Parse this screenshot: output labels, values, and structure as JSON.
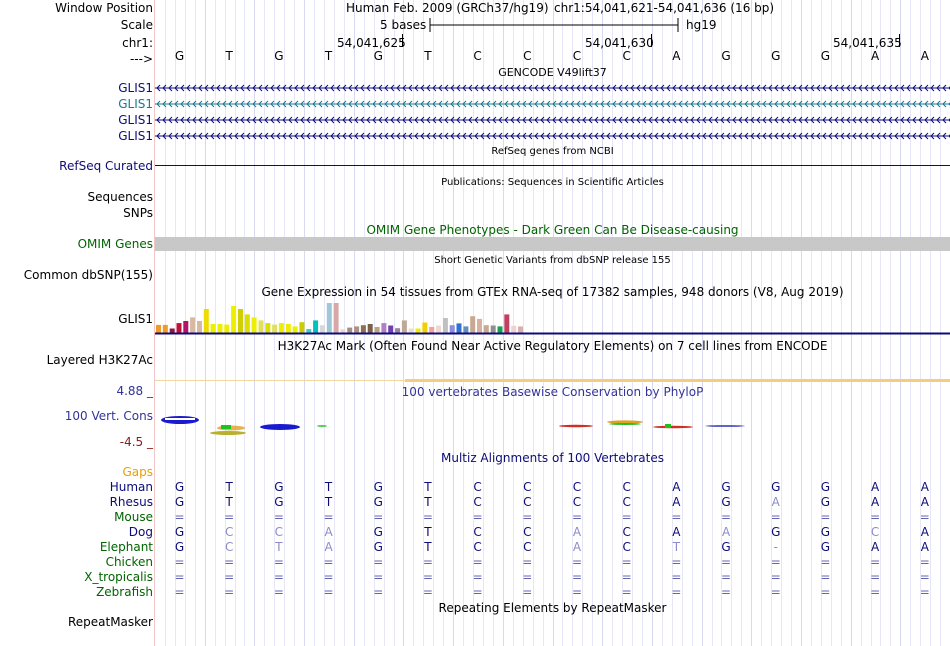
{
  "header": {
    "window_position_label": "Window Position",
    "assembly_text": "Human Feb. 2009 (GRCh37/hg19)",
    "position_text": "chr1:54,041,621-54,041,636 (16 bp)",
    "scale_label": "Scale",
    "scale_text": "5 bases",
    "assembly_short": "hg19",
    "chrom_label": "chr1:",
    "ticks": [
      "54,041,625",
      "54,041,630",
      "54,041,635"
    ],
    "strand_label": "--->"
  },
  "sequence": [
    "G",
    "T",
    "G",
    "T",
    "G",
    "T",
    "C",
    "C",
    "C",
    "C",
    "A",
    "G",
    "G",
    "G",
    "A",
    "A"
  ],
  "gencode": {
    "title": "GENCODE V49lift37",
    "tracks": [
      {
        "label": "GLIS1",
        "color": "#0c0c78"
      },
      {
        "label": "GLIS1",
        "color": "#187890"
      },
      {
        "label": "GLIS1",
        "color": "#0c0c78"
      },
      {
        "label": "GLIS1",
        "color": "#0c0c78"
      }
    ]
  },
  "refseq": {
    "label": "RefSeq Curated",
    "title": "RefSeq genes from NCBI"
  },
  "publications": {
    "title": "Publications: Sequences in Scientific Articles",
    "label_sequences": "Sequences",
    "label_snps": "SNPs"
  },
  "omim": {
    "title": "OMIM Gene Phenotypes - Dark Green Can Be Disease-causing",
    "label": "OMIM Genes",
    "bar_color": "#c8c8c8"
  },
  "dbsnp": {
    "title": "Short Genetic Variants from dbSNP release 155",
    "label": "Common dbSNP(155)"
  },
  "gtex": {
    "title": "Gene Expression in 54 tissues from GTEx RNA-seq of 17382 samples, 948 donors (V8, Aug 2019)",
    "label": "GLIS1",
    "levels": [
      0.27,
      0.27,
      0.15,
      0.33,
      0.4,
      0.52,
      0.4,
      0.8,
      0.3,
      0.3,
      0.28,
      0.9,
      0.8,
      0.62,
      0.52,
      0.42,
      0.33,
      0.28,
      0.33,
      0.3,
      0.22,
      0.36,
      0.13,
      0.42,
      0.26,
      1.0,
      1.0,
      0.12,
      0.18,
      0.22,
      0.26,
      0.3,
      0.2,
      0.33,
      0.25,
      0.16,
      0.42,
      0.15,
      0.15,
      0.35,
      0.2,
      0.25,
      0.5,
      0.26,
      0.32,
      0.22,
      0.56,
      0.47,
      0.26,
      0.25,
      0.22,
      0.62,
      0.24,
      0.22
    ],
    "colors": [
      "#f09a28",
      "#f09a28",
      "#8b1a3a",
      "#c01038",
      "#b41468",
      "#d8b8a0",
      "#d8b8a0",
      "#eedc00",
      "#eeee00",
      "#eeee00",
      "#eeee00",
      "#eeee00",
      "#d0d000",
      "#dddd00",
      "#eeee00",
      "#e0e060",
      "#dddd00",
      "#e0e060",
      "#eeee00",
      "#eeee00",
      "#eeee00",
      "#cccc00",
      "#40c8c8",
      "#00c0c0",
      "#d8d8d8",
      "#9ec8d8",
      "#d8a8a8",
      "#f0d0d0",
      "#a09080",
      "#b09080",
      "#8c7050",
      "#7a6048",
      "#c0a080",
      "#b080c0",
      "#7040b0",
      "#a080a0",
      "#c0a898",
      "#e8e0c8",
      "#eeee00",
      "#f0d000",
      "#f5a0a0",
      "#f0d8d0",
      "#c0c0c0",
      "#8c8ce0",
      "#3070d0",
      "#6090c0",
      "#c8a890",
      "#d8b0a0",
      "#c8a890",
      "#909090",
      "#10a050",
      "#c04060",
      "#f0d0d0",
      "#d8b0b0"
    ]
  },
  "h3k27ac": {
    "title": "H3K27Ac Mark (Often Found Near Active Regulatory Elements) on 7 cell lines from ENCODE",
    "label": "Layered H3K27Ac"
  },
  "phylop": {
    "title": "100 vertebrates Basewise Conservation by PhyloP",
    "label": "100 Vert. Cons",
    "max_label": "4.88 _",
    "min_label": "-4.5 _"
  },
  "multiz": {
    "title": "Multiz Alignments of 100 Vertebrates",
    "gaps_label": "Gaps",
    "species": [
      {
        "name": "Human",
        "seq": [
          "G",
          "T",
          "G",
          "T",
          "G",
          "T",
          "C",
          "C",
          "C",
          "C",
          "A",
          "G",
          "G",
          "G",
          "A",
          "A"
        ],
        "color": "#0c0c78"
      },
      {
        "name": "Rhesus",
        "seq": [
          "G",
          "T",
          "G",
          "T",
          "G",
          "T",
          "C",
          "C",
          "C",
          "C",
          "A",
          "G",
          "A",
          "G",
          "A",
          "A"
        ],
        "color": "#0c0c78"
      },
      {
        "name": "Mouse",
        "seq": [
          "=",
          "=",
          "=",
          "=",
          "=",
          "=",
          "=",
          "=",
          "=",
          "=",
          "=",
          "=",
          "=",
          "=",
          "=",
          "="
        ],
        "color": "#006400"
      },
      {
        "name": "Dog",
        "seq": [
          "G",
          "C",
          "C",
          "A",
          "G",
          "T",
          "C",
          "C",
          "A",
          "C",
          "A",
          "A",
          "G",
          "G",
          "C",
          "A"
        ],
        "color": "#0c0c78"
      },
      {
        "name": "Elephant",
        "seq": [
          "G",
          "C",
          "T",
          "A",
          "G",
          "T",
          "C",
          "C",
          "A",
          "C",
          "T",
          "G",
          "-",
          "G",
          "A",
          "A"
        ],
        "color": "#006400"
      },
      {
        "name": "Chicken",
        "seq": [
          "=",
          "=",
          "=",
          "=",
          "=",
          "=",
          "=",
          "=",
          "=",
          "=",
          "=",
          "=",
          "=",
          "=",
          "=",
          "="
        ],
        "color": "#006400"
      },
      {
        "name": "X_tropicalis",
        "seq": [
          "=",
          "=",
          "=",
          "=",
          "=",
          "=",
          "=",
          "=",
          "=",
          "=",
          "=",
          "=",
          "=",
          "=",
          "=",
          "="
        ],
        "color": "#006400"
      },
      {
        "name": "Zebrafish",
        "seq": [
          "=",
          "=",
          "=",
          "=",
          "=",
          "=",
          "=",
          "=",
          "=",
          "=",
          "=",
          "=",
          "=",
          "=",
          "=",
          "="
        ],
        "color": "#006400"
      }
    ]
  },
  "repeatmasker": {
    "title": "Repeating Elements by RepeatMasker",
    "label": "RepeatMasker"
  }
}
